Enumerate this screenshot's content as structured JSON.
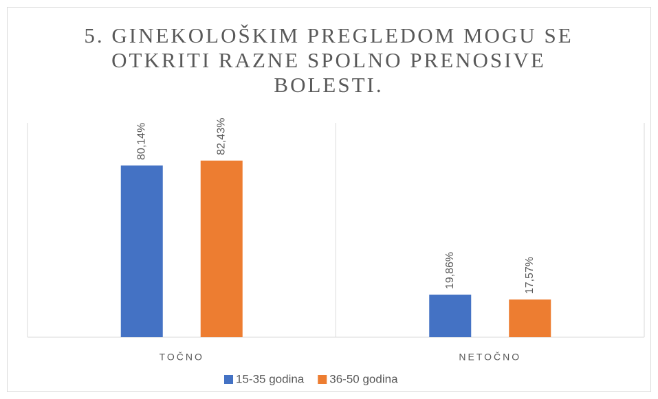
{
  "chart_data": {
    "type": "bar",
    "title": "5. GINEKOLOŠKIM PREGLEDOM MOGU SE OTKRITI RAZNE SPOLNO PRENOSIVE BOLESTI.",
    "categories": [
      "TOČNO",
      "NETOČNO"
    ],
    "series": [
      {
        "name": "15-35 godina",
        "color": "#4472c4",
        "values": [
          80.14,
          19.86
        ],
        "value_labels": [
          "80,14%",
          "19,86%"
        ]
      },
      {
        "name": "36-50 godina",
        "color": "#ed7d31",
        "values": [
          82.43,
          17.57
        ],
        "value_labels": [
          "82,43%",
          "17,57%"
        ]
      }
    ],
    "ylim": [
      0,
      100
    ],
    "legend": "bottom"
  }
}
